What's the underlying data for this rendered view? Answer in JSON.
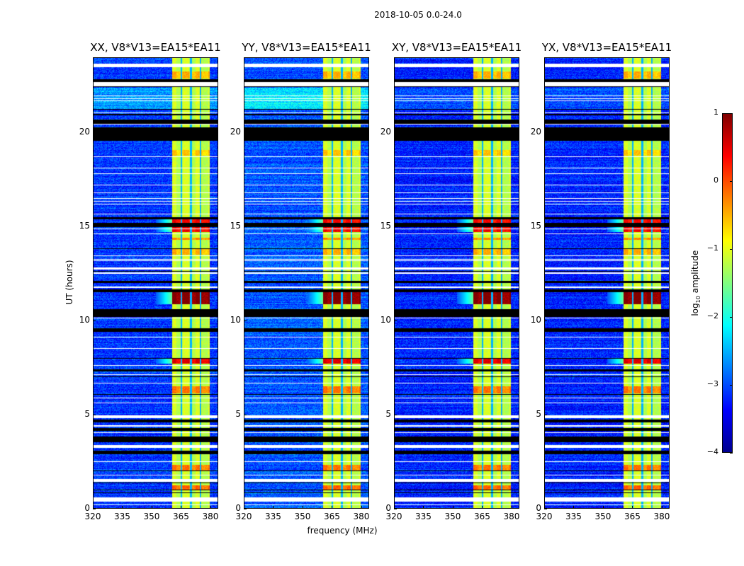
{
  "chart_data": {
    "type": "heatmap",
    "suptitle": "2018-10-05 0.0-24.0",
    "xlabel": "frequency (MHz)",
    "ylabel": "UT (hours)",
    "xlim": [
      320,
      384
    ],
    "ylim": [
      0,
      24
    ],
    "xticks": [
      "320",
      "335",
      "350",
      "365",
      "380"
    ],
    "xtick_values": [
      320,
      335,
      350,
      365,
      380
    ],
    "yticks": [
      "0",
      "5",
      "10",
      "15",
      "20"
    ],
    "ytick_values": [
      0,
      5,
      10,
      15,
      20
    ],
    "colormap": "jet",
    "clim": [
      -4,
      1
    ],
    "colorbar": {
      "label_main": "log",
      "label_sub": "10",
      "label_rest": " amplitude",
      "ticks": [
        "1",
        "0",
        "−1",
        "−2",
        "−3",
        "−4"
      ],
      "tick_values": [
        1,
        0,
        -1,
        -2,
        -3,
        -4
      ]
    },
    "panels": [
      {
        "title": "XX, V8*V13=EA15*EA11",
        "background_level": -3.1,
        "cyan_level": -2.6
      },
      {
        "title": "YY, V8*V13=EA15*EA11",
        "background_level": -2.95,
        "cyan_level": -2.2
      },
      {
        "title": "XY, V8*V13=EA15*EA11",
        "background_level": -3.2,
        "cyan_level": -3.0
      },
      {
        "title": "YX, V8*V13=EA15*EA11",
        "background_level": -3.2,
        "cyan_level": -3.0
      }
    ],
    "rfi_band_mhz": [
      360.5,
      380
    ],
    "rfi_subband_gaps_mhz": [
      365.3,
      370.3,
      375.2
    ],
    "rfi_band_level": -1.2,
    "cyan_interval_hours": [
      21.3,
      22.4
    ],
    "enhanced_intervals_hours": [
      {
        "range": [
          14.7,
          15.4
        ],
        "level": 0.3
      },
      {
        "range": [
          14.3,
          14.4
        ],
        "level": -0.4
      },
      {
        "range": [
          10.85,
          11.5
        ],
        "level": 0.9
      },
      {
        "range": [
          7.7,
          7.95
        ],
        "level": 0.4
      },
      {
        "range": [
          6.1,
          6.5
        ],
        "level": -0.3
      },
      {
        "range": [
          2.0,
          2.3
        ],
        "level": -0.3
      },
      {
        "range": [
          1.0,
          1.2
        ],
        "level": -0.2
      },
      {
        "range": [
          22.9,
          23.3
        ],
        "level": -0.6
      },
      {
        "range": [
          18.8,
          19.1
        ],
        "level": -0.7
      },
      {
        "range": [
          13.5,
          13.8
        ],
        "level": -0.6
      }
    ],
    "flagged_white_hours": [
      [
        23.5,
        23.7
      ],
      [
        22.5,
        22.7
      ],
      [
        21.95,
        22.0
      ],
      [
        21.8,
        21.85
      ],
      [
        21.7,
        21.74
      ],
      [
        21.05,
        21.1
      ],
      [
        20.45,
        20.5
      ],
      [
        18.7,
        18.74
      ],
      [
        18.1,
        18.14
      ],
      [
        17.8,
        17.84
      ],
      [
        17.2,
        17.24
      ],
      [
        16.8,
        16.84
      ],
      [
        16.5,
        16.54
      ],
      [
        16.35,
        16.39
      ],
      [
        16.2,
        16.24
      ],
      [
        15.65,
        15.69
      ],
      [
        14.85,
        14.89
      ],
      [
        14.6,
        14.64
      ],
      [
        13.45,
        13.49
      ],
      [
        13.25,
        13.29
      ],
      [
        13.18,
        13.22
      ],
      [
        12.7,
        12.82
      ],
      [
        12.5,
        12.55
      ],
      [
        11.75,
        11.8
      ],
      [
        10.1,
        10.14
      ],
      [
        9.1,
        9.14
      ],
      [
        8.5,
        8.54
      ],
      [
        7.6,
        7.64
      ],
      [
        7.1,
        7.14
      ],
      [
        6.65,
        6.69
      ],
      [
        5.85,
        5.89
      ],
      [
        5.6,
        5.64
      ],
      [
        4.8,
        4.95
      ],
      [
        4.35,
        4.4
      ],
      [
        4.0,
        4.04
      ],
      [
        3.2,
        3.35
      ],
      [
        2.45,
        2.5
      ],
      [
        1.72,
        1.76
      ],
      [
        1.4,
        1.55
      ],
      [
        0.35,
        0.55
      ],
      [
        0.25,
        0.28
      ],
      [
        0.15,
        0.18
      ]
    ],
    "black_hours": [
      [
        22.7,
        22.85
      ],
      [
        22.45,
        22.48
      ],
      [
        21.25,
        21.29
      ],
      [
        20.96,
        21.0
      ],
      [
        20.5,
        20.7
      ],
      [
        19.6,
        20.3
      ],
      [
        15.4,
        15.5
      ],
      [
        15.0,
        15.2
      ],
      [
        13.8,
        13.84
      ],
      [
        12.62,
        12.66
      ],
      [
        12.0,
        12.1
      ],
      [
        11.5,
        11.65
      ],
      [
        10.2,
        10.6
      ],
      [
        9.4,
        9.6
      ],
      [
        7.95,
        8.0
      ],
      [
        7.3,
        7.4
      ],
      [
        7.0,
        7.03
      ],
      [
        6.05,
        6.09
      ],
      [
        4.55,
        4.7
      ],
      [
        4.1,
        4.25
      ],
      [
        3.5,
        3.8
      ],
      [
        2.85,
        3.05
      ],
      [
        1.97,
        2.0
      ],
      [
        1.33,
        1.37
      ],
      [
        0.95,
        0.98
      ],
      [
        0.78,
        0.82
      ]
    ]
  }
}
